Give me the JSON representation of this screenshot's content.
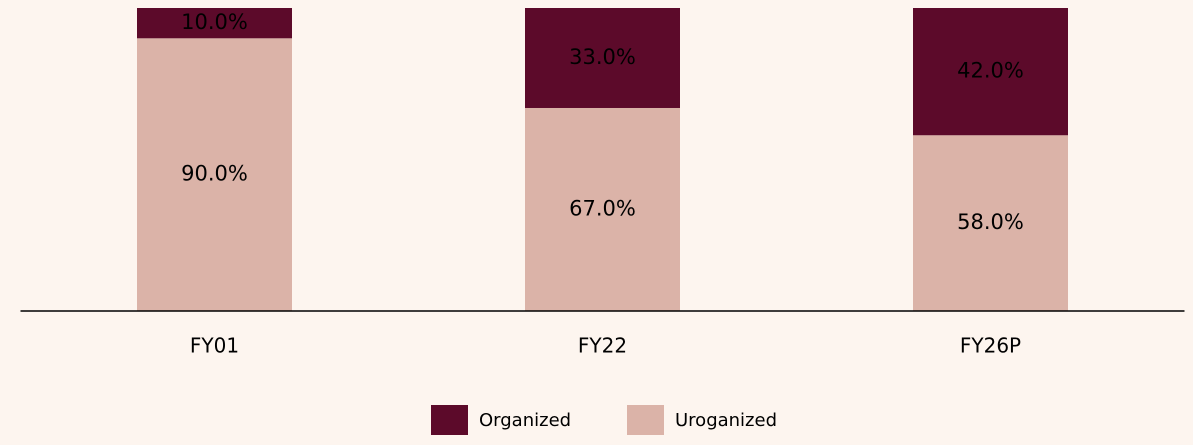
{
  "chart_data": {
    "type": "stacked_bar",
    "categories": [
      "FY01",
      "FY22",
      "FY26P"
    ],
    "series": [
      {
        "name": "Uroganized",
        "color": "#dbb3a8",
        "values": [
          90.0,
          67.0,
          58.0
        ],
        "value_labels": [
          "90.0%",
          "67.0%",
          "58.0%"
        ]
      },
      {
        "name": "Organized",
        "color": "#5c0a2a",
        "values": [
          10.0,
          33.0,
          42.0
        ],
        "value_labels": [
          "10.0%",
          "33.0%",
          "42.0%"
        ]
      }
    ],
    "legend": "bottom"
  }
}
